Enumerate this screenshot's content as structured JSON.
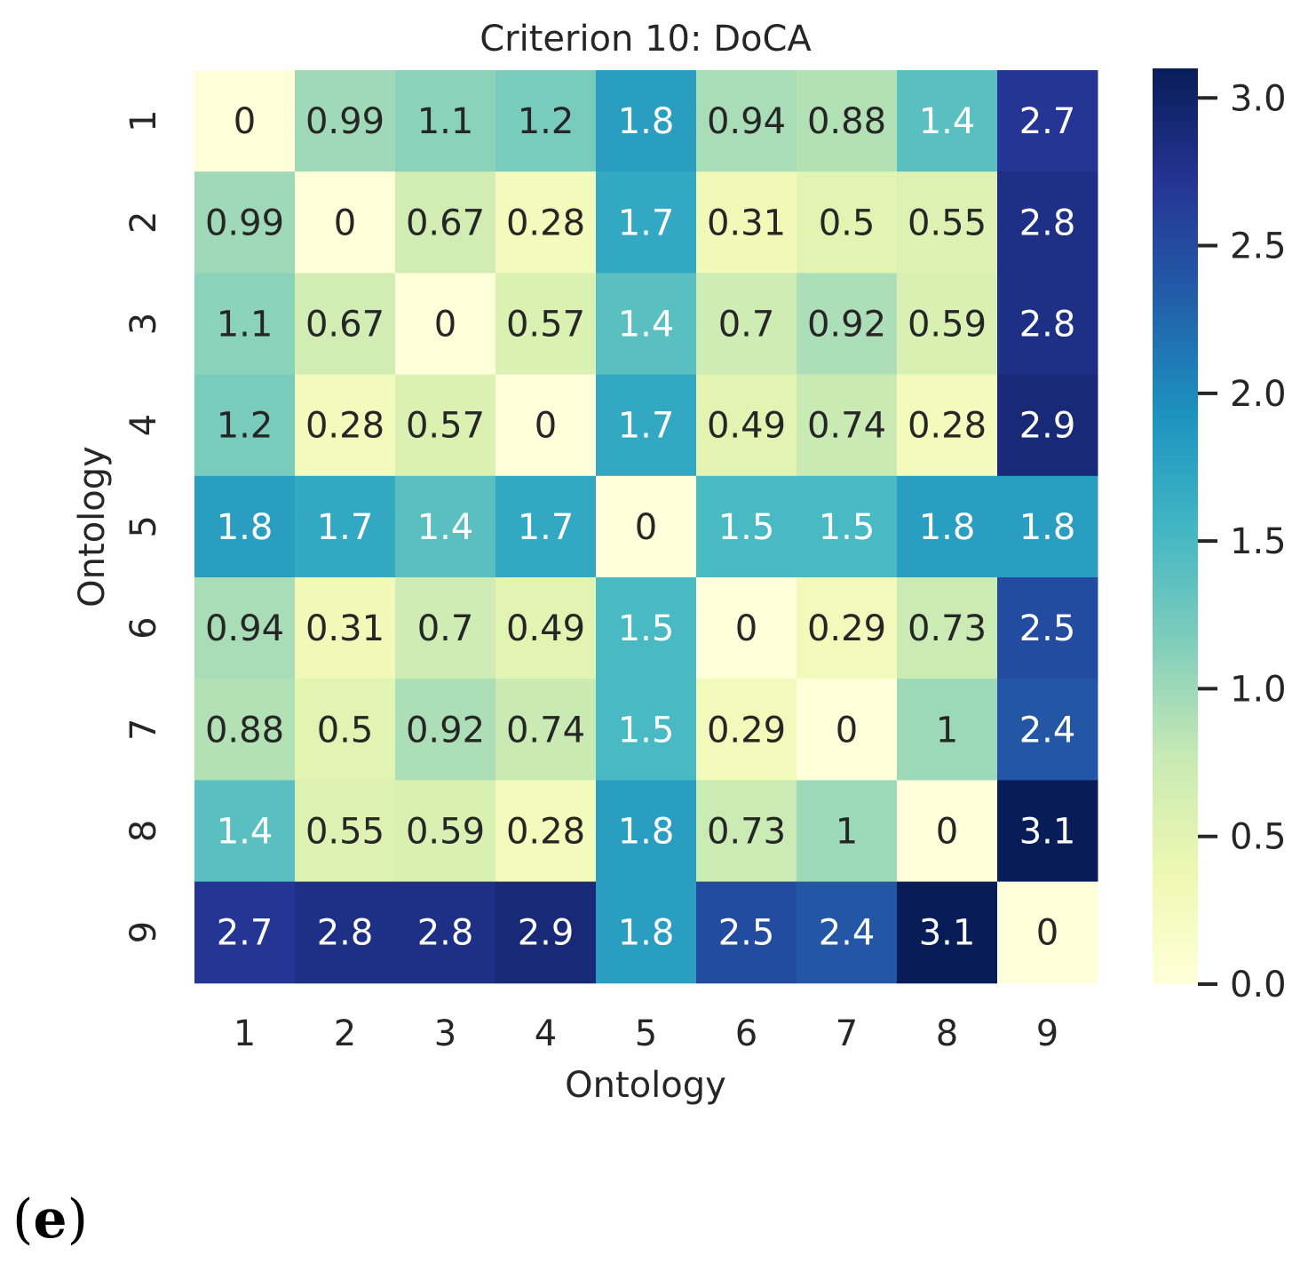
{
  "chart_data": {
    "type": "heatmap",
    "title": "Criterion 10: DoCA",
    "xlabel": "Ontology",
    "ylabel": "Ontology",
    "x_categories": [
      "1",
      "2",
      "3",
      "4",
      "5",
      "6",
      "7",
      "8",
      "9"
    ],
    "y_categories": [
      "1",
      "2",
      "3",
      "4",
      "5",
      "6",
      "7",
      "8",
      "9"
    ],
    "values": [
      [
        0,
        0.99,
        1.1,
        1.2,
        1.8,
        0.94,
        0.88,
        1.4,
        2.7
      ],
      [
        0.99,
        0,
        0.67,
        0.28,
        1.7,
        0.31,
        0.5,
        0.55,
        2.8
      ],
      [
        1.1,
        0.67,
        0,
        0.57,
        1.4,
        0.7,
        0.92,
        0.59,
        2.8
      ],
      [
        1.2,
        0.28,
        0.57,
        0,
        1.7,
        0.49,
        0.74,
        0.28,
        2.9
      ],
      [
        1.8,
        1.7,
        1.4,
        1.7,
        0,
        1.5,
        1.5,
        1.8,
        1.8
      ],
      [
        0.94,
        0.31,
        0.7,
        0.49,
        1.5,
        0,
        0.29,
        0.73,
        2.5
      ],
      [
        0.88,
        0.5,
        0.92,
        0.74,
        1.5,
        0.29,
        0,
        1,
        2.4
      ],
      [
        1.4,
        0.55,
        0.59,
        0.28,
        1.8,
        0.73,
        1,
        0,
        3.1
      ],
      [
        2.7,
        2.8,
        2.8,
        2.9,
        1.8,
        2.5,
        2.4,
        3.1,
        0
      ]
    ],
    "colormap": "YlGnBu",
    "vmin": 0,
    "vmax": 3.1,
    "colorbar_ticks": [
      "0.0",
      "0.5",
      "1.0",
      "1.5",
      "2.0",
      "2.5",
      "3.0"
    ],
    "colorbar_tick_values": [
      0,
      0.5,
      1.0,
      1.5,
      2.0,
      2.5,
      3.0
    ]
  },
  "panel_label": "(e)",
  "panel_letter": "e",
  "colors": {
    "text_dark": "#262626",
    "text_light": "#ffffff",
    "ylgnbu": [
      "#ffffd9",
      "#edf8b1",
      "#c7e9b4",
      "#7fcdbb",
      "#41b6c4",
      "#1d91c0",
      "#225ea8",
      "#253494",
      "#081d58"
    ]
  }
}
